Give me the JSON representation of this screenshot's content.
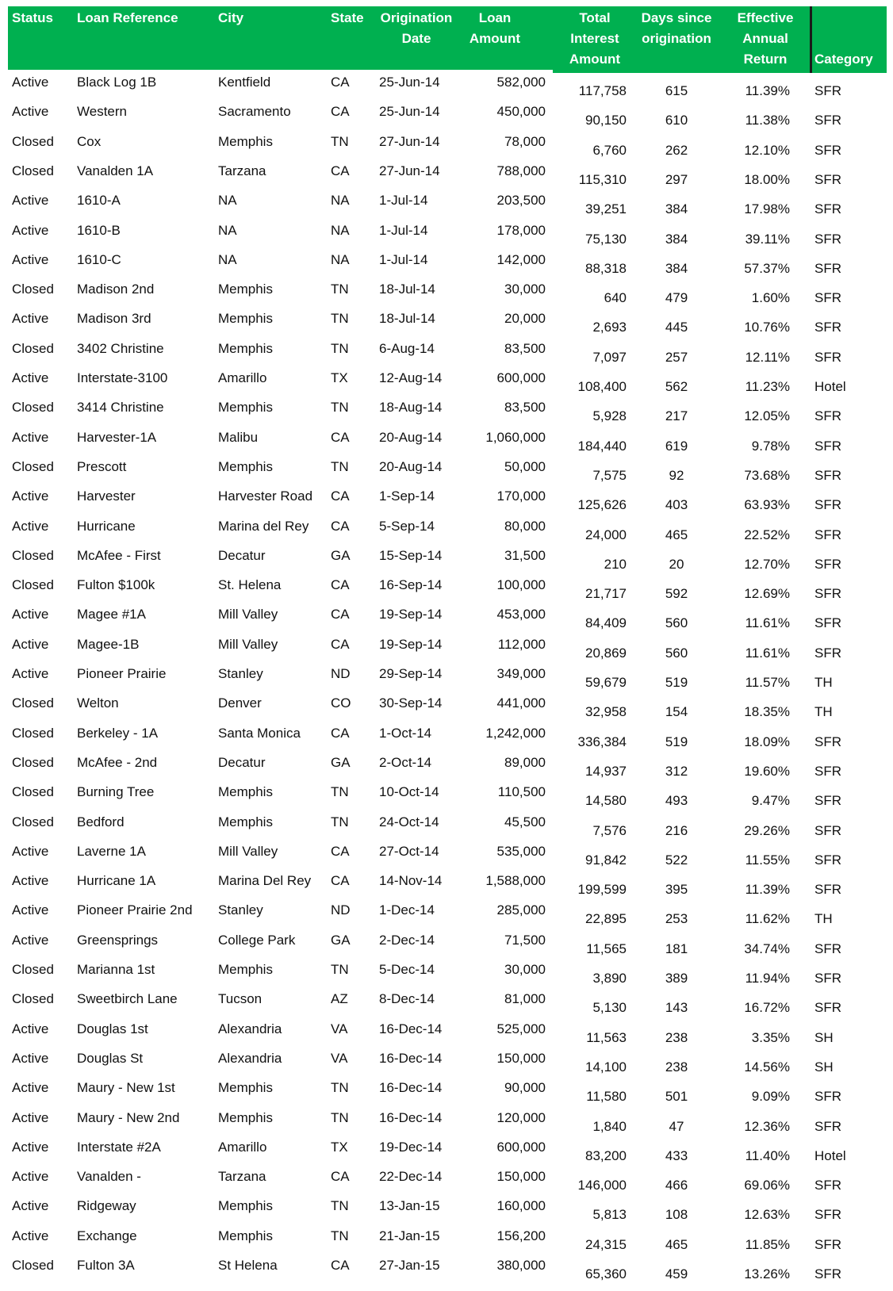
{
  "table": {
    "headers": [
      "Status",
      "Loan Reference",
      "City",
      "State",
      "Origination Date",
      "Loan Amount",
      "Total Interest Amount",
      "Days since origination",
      "Effective Annual Return",
      "Category"
    ],
    "rows": [
      [
        "Active",
        "Black Log 1B",
        "Kentfield",
        "CA",
        "25-Jun-14",
        "582,000",
        "117,758",
        "615",
        "11.39%",
        "SFR"
      ],
      [
        "Active",
        "Western",
        "Sacramento",
        "CA",
        "25-Jun-14",
        "450,000",
        "90,150",
        "610",
        "11.38%",
        "SFR"
      ],
      [
        "Closed",
        "Cox",
        "Memphis",
        "TN",
        "27-Jun-14",
        "78,000",
        "6,760",
        "262",
        "12.10%",
        "SFR"
      ],
      [
        "Closed",
        "Vanalden 1A",
        "Tarzana",
        "CA",
        "27-Jun-14",
        "788,000",
        "115,310",
        "297",
        "18.00%",
        "SFR"
      ],
      [
        "Active",
        "1610-A",
        "NA",
        "NA",
        "1-Jul-14",
        "203,500",
        "39,251",
        "384",
        "17.98%",
        "SFR"
      ],
      [
        "Active",
        "1610-B",
        "NA",
        "NA",
        "1-Jul-14",
        "178,000",
        "75,130",
        "384",
        "39.11%",
        "SFR"
      ],
      [
        "Active",
        "1610-C",
        "NA",
        "NA",
        "1-Jul-14",
        "142,000",
        "88,318",
        "384",
        "57.37%",
        "SFR"
      ],
      [
        "Closed",
        "Madison 2nd",
        "Memphis",
        "TN",
        "18-Jul-14",
        "30,000",
        "640",
        "479",
        "1.60%",
        "SFR"
      ],
      [
        "Active",
        "Madison 3rd",
        "Memphis",
        "TN",
        "18-Jul-14",
        "20,000",
        "2,693",
        "445",
        "10.76%",
        "SFR"
      ],
      [
        "Closed",
        "3402 Christine",
        "Memphis",
        "TN",
        "6-Aug-14",
        "83,500",
        "7,097",
        "257",
        "12.11%",
        "SFR"
      ],
      [
        "Active",
        "Interstate-3100",
        "Amarillo",
        "TX",
        "12-Aug-14",
        "600,000",
        "108,400",
        "562",
        "11.23%",
        "Hotel"
      ],
      [
        "Closed",
        "3414 Christine",
        "Memphis",
        "TN",
        "18-Aug-14",
        "83,500",
        "5,928",
        "217",
        "12.05%",
        "SFR"
      ],
      [
        "Active",
        "Harvester-1A",
        "Malibu",
        "CA",
        "20-Aug-14",
        "1,060,000",
        "184,440",
        "619",
        "9.78%",
        "SFR"
      ],
      [
        "Closed",
        "Prescott",
        "Memphis",
        "TN",
        "20-Aug-14",
        "50,000",
        "7,575",
        "92",
        "73.68%",
        "SFR"
      ],
      [
        "Active",
        "Harvester",
        "Harvester Road",
        "CA",
        "1-Sep-14",
        "170,000",
        "125,626",
        "403",
        "63.93%",
        "SFR"
      ],
      [
        "Active",
        "Hurricane",
        "Marina del Rey",
        "CA",
        "5-Sep-14",
        "80,000",
        "24,000",
        "465",
        "22.52%",
        "SFR"
      ],
      [
        "Closed",
        "McAfee - First",
        "Decatur",
        "GA",
        "15-Sep-14",
        "31,500",
        "210",
        "20",
        "12.70%",
        "SFR"
      ],
      [
        "Closed",
        "Fulton $100k",
        "St. Helena",
        "CA",
        "16-Sep-14",
        "100,000",
        "21,717",
        "592",
        "12.69%",
        "SFR"
      ],
      [
        "Active",
        "Magee #1A",
        "Mill Valley",
        "CA",
        "19-Sep-14",
        "453,000",
        "84,409",
        "560",
        "11.61%",
        "SFR"
      ],
      [
        "Active",
        "Magee-1B",
        "Mill Valley",
        "CA",
        "19-Sep-14",
        "112,000",
        "20,869",
        "560",
        "11.61%",
        "SFR"
      ],
      [
        "Active",
        "Pioneer Prairie",
        "Stanley",
        "ND",
        "29-Sep-14",
        "349,000",
        "59,679",
        "519",
        "11.57%",
        "TH"
      ],
      [
        "Closed",
        "Welton",
        "Denver",
        "CO",
        "30-Sep-14",
        "441,000",
        "32,958",
        "154",
        "18.35%",
        "TH"
      ],
      [
        "Closed",
        "Berkeley - 1A",
        "Santa Monica",
        "CA",
        "1-Oct-14",
        "1,242,000",
        "336,384",
        "519",
        "18.09%",
        "SFR"
      ],
      [
        "Closed",
        "McAfee - 2nd",
        "Decatur",
        "GA",
        "2-Oct-14",
        "89,000",
        "14,937",
        "312",
        "19.60%",
        "SFR"
      ],
      [
        "Closed",
        "Burning Tree",
        "Memphis",
        "TN",
        "10-Oct-14",
        "110,500",
        "14,580",
        "493",
        "9.47%",
        "SFR"
      ],
      [
        "Closed",
        "Bedford",
        "Memphis",
        "TN",
        "24-Oct-14",
        "45,500",
        "7,576",
        "216",
        "29.26%",
        "SFR"
      ],
      [
        "Active",
        "Laverne 1A",
        "Mill Valley",
        "CA",
        "27-Oct-14",
        "535,000",
        "91,842",
        "522",
        "11.55%",
        "SFR"
      ],
      [
        "Active",
        "Hurricane 1A",
        "Marina Del Rey",
        "CA",
        "14-Nov-14",
        "1,588,000",
        "199,599",
        "395",
        "11.39%",
        "SFR"
      ],
      [
        "Active",
        "Pioneer Prairie 2nd",
        "Stanley",
        "ND",
        "1-Dec-14",
        "285,000",
        "22,895",
        "253",
        "11.62%",
        "TH"
      ],
      [
        "Active",
        "Greensprings",
        "College Park",
        "GA",
        "2-Dec-14",
        "71,500",
        "11,565",
        "181",
        "34.74%",
        "SFR"
      ],
      [
        "Closed",
        "Marianna 1st",
        "Memphis",
        "TN",
        "5-Dec-14",
        "30,000",
        "3,890",
        "389",
        "11.94%",
        "SFR"
      ],
      [
        "Closed",
        "Sweetbirch Lane",
        "Tucson",
        "AZ",
        "8-Dec-14",
        "81,000",
        "5,130",
        "143",
        "16.72%",
        "SFR"
      ],
      [
        "Active",
        "Douglas 1st",
        "Alexandria",
        "VA",
        "16-Dec-14",
        "525,000",
        "11,563",
        "238",
        "3.35%",
        "SH"
      ],
      [
        "Active",
        "Douglas St",
        "Alexandria",
        "VA",
        "16-Dec-14",
        "150,000",
        "14,100",
        "238",
        "14.56%",
        "SH"
      ],
      [
        "Active",
        "Maury - New 1st",
        "Memphis",
        "TN",
        "16-Dec-14",
        "90,000",
        "11,580",
        "501",
        "9.09%",
        "SFR"
      ],
      [
        "Active",
        "Maury - New 2nd",
        "Memphis",
        "TN",
        "16-Dec-14",
        "120,000",
        "1,840",
        "47",
        "12.36%",
        "SFR"
      ],
      [
        "Active",
        "Interstate #2A",
        "Amarillo",
        "TX",
        "19-Dec-14",
        "600,000",
        "83,200",
        "433",
        "11.40%",
        "Hotel"
      ],
      [
        "Active",
        "Vanalden -",
        "Tarzana",
        "CA",
        "22-Dec-14",
        "150,000",
        "146,000",
        "466",
        "69.06%",
        "SFR"
      ],
      [
        "Active",
        "Ridgeway",
        "Memphis",
        "TN",
        "13-Jan-15",
        "160,000",
        "5,813",
        "108",
        "12.63%",
        "SFR"
      ],
      [
        "Active",
        "Exchange",
        "Memphis",
        "TN",
        "21-Jan-15",
        "156,200",
        "24,315",
        "465",
        "11.85%",
        "SFR"
      ],
      [
        "Closed",
        "Fulton 3A",
        "St Helena",
        "CA",
        "27-Jan-15",
        "380,000",
        "65,360",
        "459",
        "13.26%",
        "SFR"
      ]
    ]
  }
}
